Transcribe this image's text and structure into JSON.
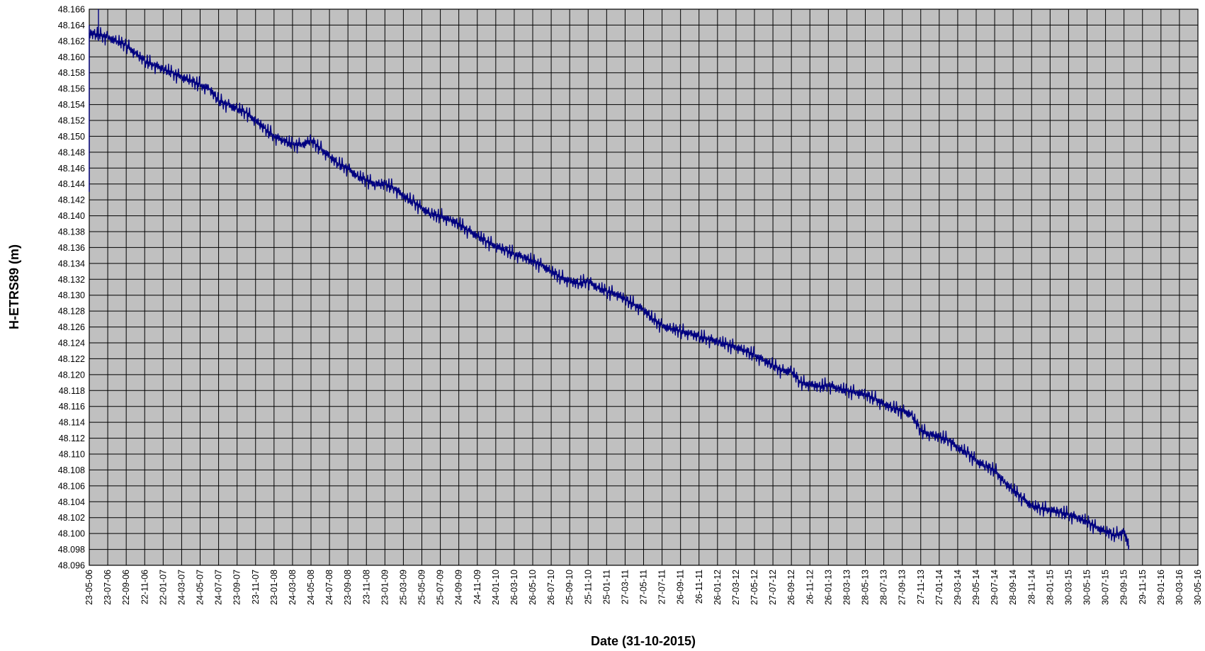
{
  "chart_data": {
    "type": "line",
    "title": "",
    "xlabel": "Date (31-10-2015)",
    "ylabel": "H-ETRS89  (m)",
    "ylim": [
      48.096,
      48.166
    ],
    "y_ticks": [
      "48.166",
      "48.164",
      "48.162",
      "48.160",
      "48.158",
      "48.156",
      "48.154",
      "48.152",
      "48.150",
      "48.148",
      "48.146",
      "48.144",
      "48.142",
      "48.140",
      "48.138",
      "48.136",
      "48.134",
      "48.132",
      "48.130",
      "48.128",
      "48.126",
      "48.124",
      "48.122",
      "48.120",
      "48.118",
      "48.116",
      "48.114",
      "48.112",
      "48.110",
      "48.108",
      "48.106",
      "48.104",
      "48.102",
      "48.100",
      "48.098",
      "48.096"
    ],
    "x_ticks": [
      "23-05-06",
      "23-07-06",
      "22-09-06",
      "22-11-06",
      "22-01-07",
      "24-03-07",
      "24-05-07",
      "24-07-07",
      "23-09-07",
      "23-11-07",
      "23-01-08",
      "24-03-08",
      "24-05-08",
      "24-07-08",
      "23-09-08",
      "23-11-08",
      "23-01-09",
      "25-03-09",
      "25-05-09",
      "25-07-09",
      "24-09-09",
      "24-11-09",
      "24-01-10",
      "26-03-10",
      "26-05-10",
      "26-07-10",
      "25-09-10",
      "25-11-10",
      "25-01-11",
      "27-03-11",
      "27-05-11",
      "27-07-11",
      "26-09-11",
      "26-11-11",
      "26-01-12",
      "27-03-12",
      "27-05-12",
      "27-07-12",
      "26-09-12",
      "26-11-12",
      "26-01-13",
      "28-03-13",
      "28-05-13",
      "28-07-13",
      "27-09-13",
      "27-11-13",
      "27-01-14",
      "29-03-14",
      "29-05-14",
      "29-07-14",
      "28-09-14",
      "28-11-14",
      "28-01-15",
      "30-03-15",
      "30-05-15",
      "30-07-15",
      "29-09-15",
      "29-11-15",
      "29-01-16",
      "30-03-16",
      "30-05-16"
    ],
    "xlim": [
      "2006-05-23",
      "2016-05-30"
    ],
    "grid": true,
    "background_color": "#c0c0c0",
    "grid_color": "#000000",
    "series_color": "#000080",
    "series": [
      {
        "x": [
          "2006-05-23",
          "2006-06-23",
          "2006-07-23",
          "2006-08-23",
          "2006-09-22",
          "2006-10-22",
          "2006-11-22",
          "2006-12-22",
          "2007-01-22",
          "2007-02-22",
          "2007-03-24",
          "2007-04-24",
          "2007-05-24",
          "2007-06-24",
          "2007-07-24",
          "2007-08-24",
          "2007-09-23",
          "2007-10-23",
          "2007-11-23",
          "2007-12-23",
          "2008-01-23",
          "2008-02-23",
          "2008-03-24",
          "2008-04-24",
          "2008-05-24",
          "2008-06-24",
          "2008-07-24",
          "2008-08-24",
          "2008-09-23",
          "2008-10-23",
          "2008-11-23",
          "2008-12-23",
          "2009-01-23",
          "2009-02-23",
          "2009-03-25",
          "2009-04-25",
          "2009-05-25",
          "2009-06-25",
          "2009-07-25",
          "2009-08-25",
          "2009-09-24",
          "2009-10-24",
          "2009-11-24",
          "2009-12-24",
          "2010-01-24",
          "2010-02-24",
          "2010-03-26",
          "2010-04-26",
          "2010-05-26",
          "2010-06-26",
          "2010-07-26",
          "2010-08-26",
          "2010-09-25",
          "2010-10-25",
          "2010-11-25",
          "2010-12-25",
          "2011-01-25",
          "2011-02-25",
          "2011-03-27",
          "2011-04-27",
          "2011-05-27",
          "2011-06-27",
          "2011-07-27",
          "2011-08-27",
          "2011-09-26",
          "2011-10-26",
          "2011-11-26",
          "2011-12-26",
          "2012-01-26",
          "2012-02-26",
          "2012-03-27",
          "2012-04-27",
          "2012-05-27",
          "2012-06-27",
          "2012-07-27",
          "2012-08-27",
          "2012-09-26",
          "2012-10-26",
          "2012-11-26",
          "2012-12-26",
          "2013-01-26",
          "2013-02-26",
          "2013-03-28",
          "2013-04-28",
          "2013-05-28",
          "2013-06-28",
          "2013-07-28",
          "2013-08-28",
          "2013-09-27",
          "2013-10-27",
          "2013-11-27",
          "2013-12-27",
          "2014-01-27",
          "2014-02-27",
          "2014-03-29",
          "2014-04-29",
          "2014-05-29",
          "2014-06-29",
          "2014-07-29",
          "2014-08-29",
          "2014-09-28",
          "2014-10-28",
          "2014-11-28",
          "2014-12-28",
          "2015-01-28",
          "2015-02-28",
          "2015-03-30",
          "2015-04-30",
          "2015-05-30",
          "2015-06-30",
          "2015-07-30",
          "2015-08-30",
          "2015-09-29",
          "2015-10-15"
        ],
        "values": [
          48.163,
          48.1628,
          48.1625,
          48.162,
          48.1615,
          48.1605,
          48.1595,
          48.159,
          48.1585,
          48.158,
          48.1575,
          48.157,
          48.1565,
          48.156,
          48.1545,
          48.154,
          48.1535,
          48.153,
          48.152,
          48.151,
          48.15,
          48.1495,
          48.149,
          48.149,
          48.1495,
          48.1485,
          48.1475,
          48.1465,
          48.146,
          48.145,
          48.1445,
          48.144,
          48.144,
          48.1435,
          48.1425,
          48.1418,
          48.141,
          48.1402,
          48.14,
          48.1395,
          48.139,
          48.1382,
          48.1375,
          48.1368,
          48.1362,
          48.1357,
          48.1352,
          48.1348,
          48.1343,
          48.1338,
          48.133,
          48.1323,
          48.1318,
          48.1315,
          48.1318,
          48.131,
          48.1305,
          48.1302,
          48.1295,
          48.1288,
          48.1282,
          48.127,
          48.1262,
          48.1258,
          48.1255,
          48.1252,
          48.1248,
          48.1245,
          48.1242,
          48.1238,
          48.1235,
          48.123,
          48.1225,
          48.1218,
          48.1212,
          48.1205,
          48.1205,
          48.119,
          48.1188,
          48.1185,
          48.1187,
          48.1183,
          48.118,
          48.1178,
          48.1175,
          48.117,
          48.1163,
          48.1158,
          48.1155,
          48.115,
          48.113,
          48.1125,
          48.1122,
          48.1118,
          48.1108,
          48.1102,
          48.1092,
          48.1085,
          48.108,
          48.1065,
          48.1055,
          48.1045,
          48.1035,
          48.1032,
          48.103,
          48.1027,
          48.1024,
          48.102,
          48.1015,
          48.1008,
          48.1003,
          48.0998,
          48.1002,
          48.0985
        ]
      }
    ]
  }
}
